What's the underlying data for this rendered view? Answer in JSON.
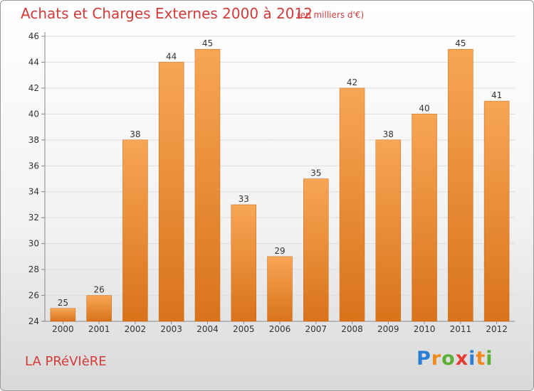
{
  "header": {
    "title": "Achats et Charges Externes 2000 à 2012",
    "subtitle": "(en milliers d'€)"
  },
  "footer": {
    "place": "LA PRéVIèRE",
    "logo_text": "Proxiti",
    "logo_colors": [
      "#2a7fd4",
      "#f08a1e",
      "#5ab036",
      "#e53b30",
      "#2a7fd4",
      "#f08a1e",
      "#5ab036"
    ]
  },
  "chart_data": {
    "type": "bar",
    "categories": [
      "2000",
      "2001",
      "2002",
      "2003",
      "2004",
      "2005",
      "2006",
      "2007",
      "2008",
      "2009",
      "2010",
      "2011",
      "2012"
    ],
    "values": [
      25,
      26,
      38,
      44,
      45,
      33,
      29,
      35,
      42,
      38,
      40,
      45,
      41
    ],
    "title": "Achats et Charges Externes 2000 à 2012",
    "xlabel": "",
    "ylabel": "",
    "ylim": [
      24,
      46
    ],
    "yticks": [
      24,
      26,
      28,
      30,
      32,
      34,
      36,
      38,
      40,
      42,
      44,
      46
    ],
    "grid": true,
    "bar_color": "#f0973a"
  }
}
